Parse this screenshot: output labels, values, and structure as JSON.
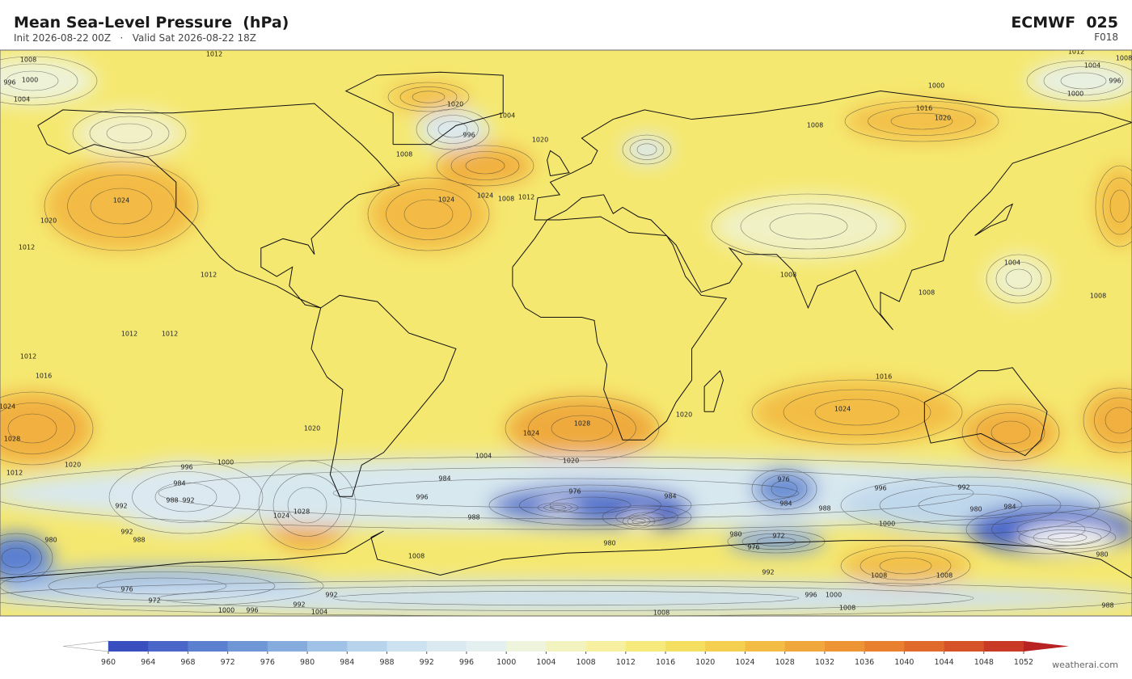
{
  "header": {
    "title": "Mean Sea-Level Pressure  (hPa)",
    "subtitle": "Init 2026-08-22 00Z   ·   Valid Sat 2026-08-22 18Z",
    "model": "ECMWF  025",
    "forecast_step": "F018"
  },
  "map": {
    "contour_labels": [
      1008,
      1012,
      1012,
      1008,
      996,
      1000,
      1004,
      1000,
      1004,
      996,
      1000,
      1016,
      1020,
      1020,
      1004,
      996,
      1008,
      1020,
      1024,
      1024,
      1008,
      1012,
      1024,
      1020,
      1012,
      1012,
      1012,
      1012,
      1012,
      1016,
      1016,
      1008,
      1008,
      1008,
      1004,
      1008,
      1024,
      1028,
      1024,
      1020,
      1004,
      1020,
      1024,
      1028,
      1020,
      1012,
      1020,
      1000,
      996,
      984,
      988,
      992,
      992,
      992,
      988,
      980,
      1024,
      1028,
      984,
      996,
      988,
      976,
      984,
      976,
      984,
      988,
      996,
      992,
      980,
      984,
      1000,
      980,
      980,
      972,
      976,
      980,
      1008,
      992,
      1008,
      1008,
      996,
      1000,
      976,
      972,
      992,
      992,
      1000,
      996,
      1004,
      1008,
      1008,
      988
    ]
  },
  "colorbar": {
    "ticks": [
      960,
      964,
      968,
      972,
      976,
      980,
      984,
      988,
      992,
      996,
      1000,
      1004,
      1008,
      1012,
      1016,
      1020,
      1024,
      1028,
      1032,
      1036,
      1040,
      1044,
      1048,
      1052
    ],
    "colors": [
      "#ffffff",
      "#3a4fbf",
      "#4a66c8",
      "#5b80d0",
      "#6f97d6",
      "#86acdd",
      "#a0c2e6",
      "#b8d4ec",
      "#cde2f0",
      "#dbeaf1",
      "#e4f0ef",
      "#eef5dc",
      "#f3f3c0",
      "#f6f0a0",
      "#f6ea7c",
      "#f5df60",
      "#f4cf50",
      "#f3bd45",
      "#f0a83c",
      "#ed9434",
      "#e8802f",
      "#e0692c",
      "#d65229",
      "#c83a26",
      "#b82222"
    ]
  },
  "footer": {
    "credit": "weatherai.com"
  }
}
